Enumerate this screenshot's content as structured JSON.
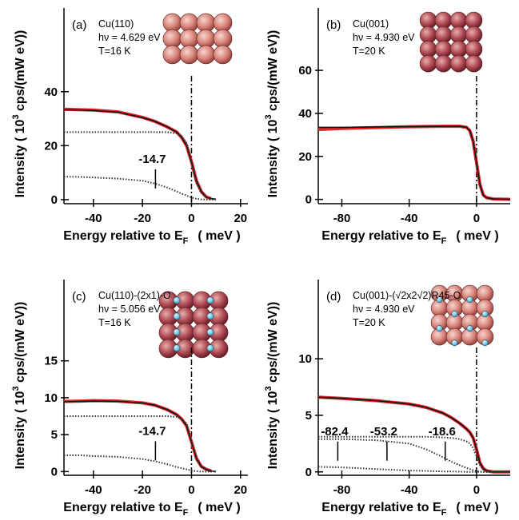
{
  "chart_data": [
    {
      "type": "line",
      "label": "(a)",
      "annotations": [
        "Cu(110)",
        "hν = 4.629 eV",
        "T=16 K"
      ],
      "xlabel": "Energy relative to E",
      "xlabel_sub": "F",
      "xlabel_unit": "( meV )",
      "ylabel": "Intensity  ( 10",
      "ylabel_sup": "3",
      "ylabel_unit": " cps/(mW eV))",
      "x": [
        -52,
        -45,
        -40,
        -30,
        -20,
        -15,
        -10,
        -6,
        -4,
        -2,
        0,
        2,
        4,
        6,
        8,
        10
      ],
      "series": [
        {
          "color": "#e8262a",
          "style": "thick",
          "values": [
            33.5,
            33.3,
            33.2,
            32.5,
            30.5,
            29,
            27,
            25,
            23,
            20,
            14,
            7,
            3,
            1,
            0.4,
            null
          ]
        },
        {
          "color": "#111111",
          "style": "solid",
          "values": [
            33.3,
            33.2,
            33.0,
            32.4,
            30.4,
            29,
            27,
            25,
            23,
            20,
            14,
            7,
            3,
            1,
            0.4,
            0.2
          ]
        },
        {
          "color": "#333333",
          "style": "dotted",
          "values": [
            25,
            25,
            25,
            25,
            25,
            25,
            25,
            24.5,
            23.5,
            21,
            13.5,
            6,
            2.5,
            1,
            0.3,
            0.1
          ]
        },
        {
          "color": "#333333",
          "style": "dotted",
          "values": [
            8.5,
            8.4,
            8.2,
            7.8,
            7,
            6,
            4.5,
            3,
            2.2,
            1.5,
            0.8,
            0.3,
            0.1,
            0,
            0,
            0
          ]
        }
      ],
      "markers": [
        -14.7
      ],
      "vline": 0,
      "xlim": [
        -52,
        23
      ],
      "ylim": [
        -1.5,
        71
      ],
      "xticks": [
        -40,
        -20,
        0,
        20
      ],
      "yticks": [
        0,
        20,
        40
      ]
    },
    {
      "type": "line",
      "label": "(b)",
      "annotations": [
        "Cu(001)",
        "hν = 4.930 eV",
        "T=20 K"
      ],
      "xlabel": "Energy relative to E",
      "xlabel_sub": "F",
      "xlabel_unit": "( meV )",
      "ylabel": "Intensity  ( 10",
      "ylabel_sup": "3",
      "ylabel_unit": " cps/(mW eV))",
      "x": [
        -94,
        -80,
        -60,
        -40,
        -20,
        -10,
        -6,
        -4,
        -2,
        0,
        2,
        4,
        6,
        10,
        20
      ],
      "series": [
        {
          "color": "#e8262a",
          "style": "thick",
          "values": [
            32.5,
            33,
            33.4,
            33.8,
            34,
            34,
            33.5,
            32,
            27,
            17,
            7,
            2,
            0.8,
            0.2,
            0
          ]
        },
        {
          "color": "#111111",
          "style": "solid",
          "values": [
            33.5,
            33.5,
            33.7,
            33.8,
            34,
            34,
            33.5,
            32,
            27,
            17,
            7,
            2,
            0.8,
            0.2,
            0
          ]
        }
      ],
      "markers": [],
      "vline": 0,
      "xlim": [
        -94,
        20
      ],
      "ylim": [
        -2,
        89
      ],
      "xticks": [
        -80,
        -40,
        0
      ],
      "yticks": [
        0,
        20,
        40,
        60
      ]
    },
    {
      "type": "line",
      "label": "(c)",
      "annotations": [
        "Cu(110)-(2x1)-O",
        "hν = 5.056 eV",
        "T=16 K"
      ],
      "xlabel": "Energy relative to E",
      "xlabel_sub": "F",
      "xlabel_unit": "( meV )",
      "ylabel": "Intensity  ( 10",
      "ylabel_sup": "3",
      "ylabel_unit": " cps/(mW eV))",
      "x": [
        -52,
        -45,
        -40,
        -30,
        -20,
        -15,
        -10,
        -6,
        -4,
        -2,
        0,
        2,
        4,
        6,
        8,
        10
      ],
      "series": [
        {
          "color": "#e8262a",
          "style": "thick",
          "values": [
            9.5,
            9.55,
            9.6,
            9.55,
            9.3,
            9.0,
            8.4,
            7.7,
            7.1,
            6.2,
            4.0,
            1.8,
            0.7,
            0.3,
            0.1,
            null
          ]
        },
        {
          "color": "#111111",
          "style": "solid",
          "values": [
            9.45,
            9.5,
            9.55,
            9.5,
            9.3,
            9.0,
            8.4,
            7.7,
            7.1,
            6.2,
            4.0,
            1.8,
            0.7,
            0.3,
            0.1,
            0
          ]
        },
        {
          "color": "#333333",
          "style": "dotted",
          "values": [
            7.5,
            7.5,
            7.5,
            7.5,
            7.5,
            7.5,
            7.5,
            7.4,
            7.1,
            6.5,
            4.0,
            1.6,
            0.6,
            0.2,
            0.1,
            0
          ]
        },
        {
          "color": "#333333",
          "style": "dotted",
          "values": [
            2.2,
            2.2,
            2.1,
            2.0,
            1.7,
            1.4,
            1.0,
            0.6,
            0.45,
            0.3,
            0.15,
            0.05,
            0,
            0,
            0,
            0
          ]
        }
      ],
      "markers": [
        -14.7
      ],
      "vline": 0,
      "xlim": [
        -52,
        23
      ],
      "ylim": [
        -0.5,
        26
      ],
      "xticks": [
        -40,
        -20,
        0,
        20
      ],
      "yticks": [
        0,
        5,
        10,
        15
      ]
    },
    {
      "type": "line",
      "label": "(d)",
      "annotations": [
        "Cu(001)-(√2x2√2)R45-O",
        "hν = 4.930 eV",
        "T=20 K"
      ],
      "xlabel": "Energy relative to E",
      "xlabel_sub": "F",
      "xlabel_unit": "( meV )",
      "ylabel": "Intensity  ( 10",
      "ylabel_sup": "3",
      "ylabel_unit": " cps/(mW eV))",
      "x": [
        -94,
        -80,
        -60,
        -40,
        -30,
        -20,
        -15,
        -10,
        -6,
        -4,
        -2,
        0,
        2,
        4,
        6,
        10,
        20
      ],
      "series": [
        {
          "color": "#e8262a",
          "style": "thick",
          "values": [
            6.6,
            6.5,
            6.3,
            6.0,
            5.7,
            5.2,
            4.8,
            4.3,
            3.8,
            3.5,
            3.0,
            2.0,
            0.8,
            0.3,
            0.1,
            0,
            0
          ]
        },
        {
          "color": "#111111",
          "style": "solid",
          "values": [
            6.6,
            6.5,
            6.3,
            6.0,
            5.7,
            5.2,
            4.8,
            4.3,
            3.8,
            3.5,
            3.0,
            2.0,
            0.8,
            0.3,
            0.1,
            0,
            0
          ]
        },
        {
          "color": "#333333",
          "style": "dotted",
          "values": [
            3.1,
            3.1,
            3.1,
            3.1,
            3.1,
            3.05,
            3.0,
            2.9,
            2.7,
            2.5,
            2.1,
            1.4,
            0.6,
            0.2,
            0.05,
            0,
            0
          ]
        },
        {
          "color": "#333333",
          "style": "dotted",
          "values": [
            2.9,
            2.9,
            2.8,
            2.5,
            2.0,
            1.3,
            0.9,
            0.6,
            0.35,
            0.25,
            0.15,
            0.08,
            0.03,
            0,
            0,
            0,
            0
          ]
        },
        {
          "color": "#333333",
          "style": "dotted",
          "values": [
            0.45,
            0.4,
            0.25,
            0.12,
            0.08,
            0.04,
            0.03,
            0.02,
            0.01,
            0,
            0,
            0,
            0,
            0,
            0,
            0,
            0
          ]
        }
      ],
      "markers": [
        -82.4,
        -53.2,
        -18.6
      ],
      "vline": 0,
      "xlim": [
        -94,
        20
      ],
      "ylim": [
        -0.3,
        17
      ],
      "xticks": [
        -80,
        -40,
        0
      ],
      "yticks": [
        0,
        5,
        10
      ]
    }
  ]
}
